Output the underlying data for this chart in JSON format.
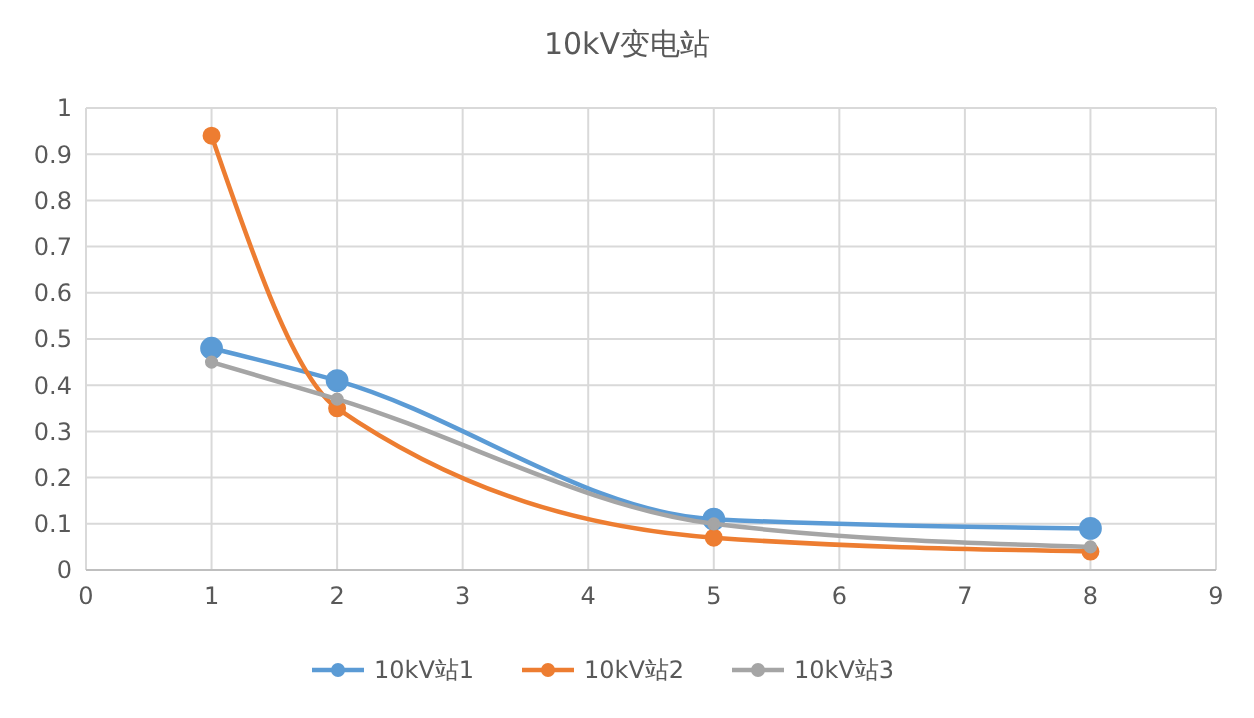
{
  "chart_data": {
    "type": "line",
    "title": "10kV变电站",
    "x": [
      1,
      2,
      5,
      8
    ],
    "xlim": [
      0,
      9
    ],
    "xticks": [
      0,
      1,
      2,
      3,
      4,
      5,
      6,
      7,
      8,
      9
    ],
    "ylim": [
      0,
      1
    ],
    "yticks": [
      0,
      0.1,
      0.2,
      0.3,
      0.4,
      0.5,
      0.6,
      0.7,
      0.8,
      0.9,
      1
    ],
    "grid": true,
    "legend": "bottom",
    "marker": "circle",
    "line_style": "solid",
    "series": [
      {
        "name": "10kV站1",
        "color": "#5b9bd5",
        "values": [
          0.48,
          0.41,
          0.11,
          0.09
        ]
      },
      {
        "name": "10kV站2",
        "color": "#ed7d31",
        "values": [
          0.94,
          0.35,
          0.07,
          0.04
        ]
      },
      {
        "name": "10kV站3",
        "color": "#a5a5a5",
        "values": [
          0.45,
          0.37,
          0.1,
          0.05
        ]
      }
    ]
  }
}
